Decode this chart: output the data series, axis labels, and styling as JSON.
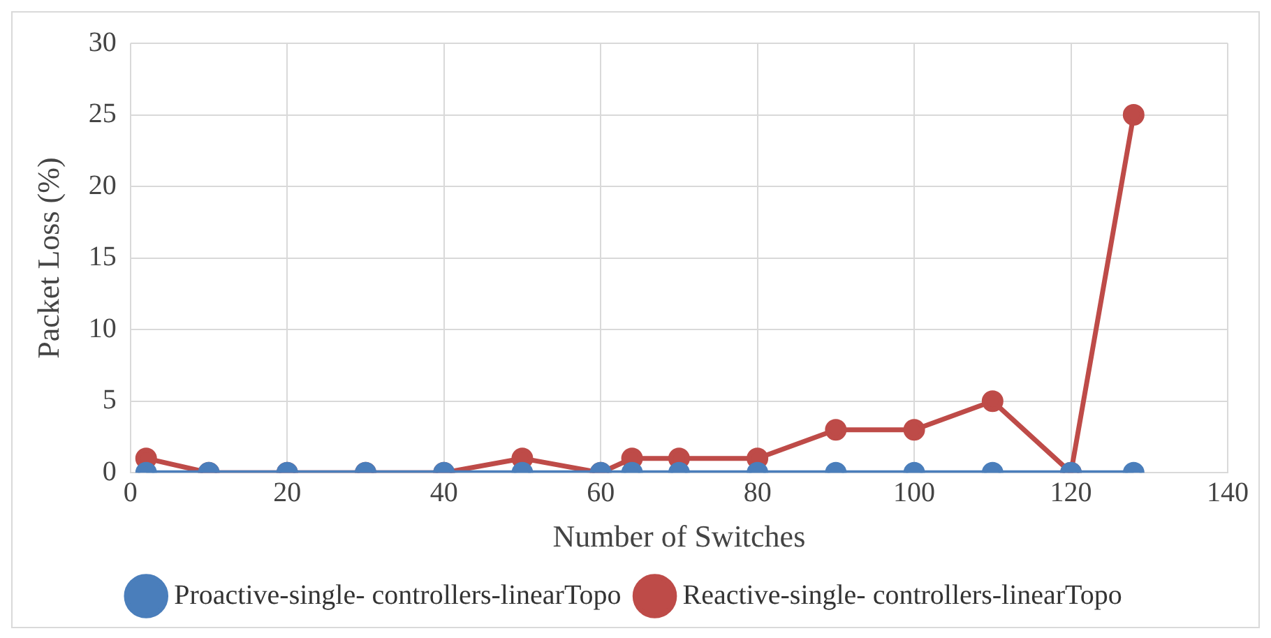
{
  "chart_data": {
    "type": "line",
    "xlabel": "Number of Switches",
    "ylabel": "Packet Loss (%)",
    "x": [
      2,
      10,
      20,
      30,
      40,
      50,
      60,
      64,
      70,
      80,
      90,
      100,
      110,
      120,
      128
    ],
    "series": [
      {
        "name": "Proactive-single- controllers-linearTopo",
        "color": "#4a7ebb",
        "values": [
          0,
          0,
          0,
          0,
          0,
          0,
          0,
          0,
          0,
          0,
          0,
          0,
          0,
          0,
          0
        ]
      },
      {
        "name": "Reactive-single- controllers-linearTopo",
        "color": "#be4b48",
        "values": [
          1,
          0,
          0,
          0,
          0,
          1,
          0,
          1,
          1,
          1,
          3,
          3,
          5,
          0,
          25
        ]
      }
    ],
    "xlim": [
      0,
      140
    ],
    "xticks": [
      0,
      20,
      40,
      60,
      80,
      100,
      120,
      140
    ],
    "ylim": [
      0,
      30
    ],
    "yticks": [
      0,
      5,
      10,
      15,
      20,
      25,
      30
    ],
    "grid": true,
    "legend": "bottom",
    "marker": "circle",
    "line_style": "solid"
  }
}
